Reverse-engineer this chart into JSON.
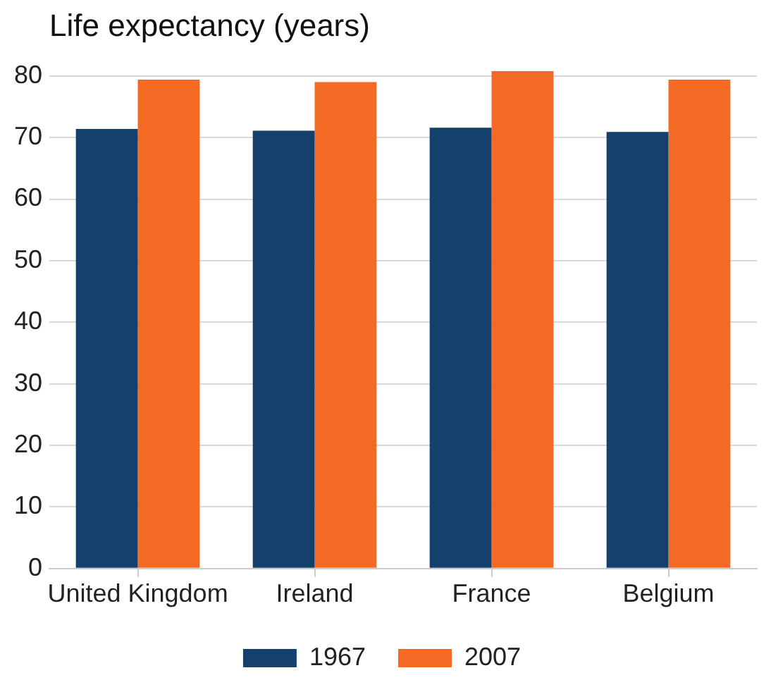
{
  "chart_data": {
    "type": "bar",
    "title": "Life expectancy (years)",
    "categories": [
      "United Kingdom",
      "Ireland",
      "France",
      "Belgium"
    ],
    "series": [
      {
        "name": "1967",
        "color": "#13416b",
        "values": [
          71.4,
          71.1,
          71.6,
          70.9
        ]
      },
      {
        "name": "2007",
        "color": "#f26a24",
        "values": [
          79.4,
          79.0,
          80.8,
          79.4
        ]
      }
    ],
    "ylim": [
      0,
      80.8
    ],
    "yticks": [
      0,
      10,
      20,
      30,
      40,
      50,
      60,
      70,
      80
    ],
    "grid": "y",
    "legend": "bottom"
  }
}
